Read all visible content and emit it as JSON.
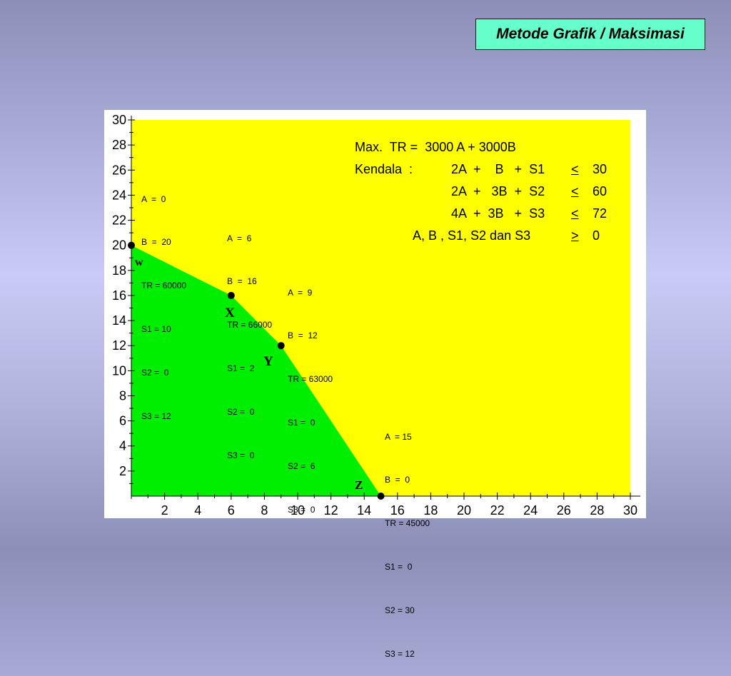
{
  "slide": {
    "title": "Metode Grafik / Maksimasi"
  },
  "model": {
    "objective": "Max.  TR =  3000 A + 3000B",
    "constraints_label": "Kendala  :",
    "constraints": [
      {
        "lhs": "2A  +    B   +  S1",
        "op": "<",
        "rhs": "30"
      },
      {
        "lhs": "2A  +   3B  +  S2",
        "op": "<",
        "rhs": "60"
      },
      {
        "lhs": "4A  +  3B   +  S3",
        "op": "<",
        "rhs": "72"
      }
    ],
    "nonneg": {
      "lhs": "A, B , S1, S2 dan S3",
      "op": ">",
      "rhs": "0"
    }
  },
  "corner_points": [
    {
      "label": "w",
      "lines": [
        "A  =  0",
        "B  =  20",
        "TR = 60000",
        "S1 = 10",
        "S2 =  0",
        "S3 = 12"
      ]
    },
    {
      "label": "X",
      "lines": [
        "A  =  6",
        "B  =  16",
        "TR = 66000",
        "S1 =  2",
        "S2 =  0",
        "S3 =  0"
      ]
    },
    {
      "label": "Y",
      "lines": [
        "A  =  9",
        "B  =  12",
        "TR = 63000",
        "S1 =  0",
        "S2 =  6",
        "S3 =  0"
      ]
    },
    {
      "label": "Z",
      "lines": [
        "A  = 15",
        "B  =  0",
        "TR = 45000",
        "S1 =  0",
        "S2 = 30",
        "S3 = 12"
      ]
    }
  ],
  "chart_data": {
    "type": "area",
    "title": "",
    "xlabel": "",
    "ylabel": "",
    "xlim": [
      0,
      30
    ],
    "ylim": [
      0,
      30
    ],
    "x_ticks": [
      2,
      4,
      6,
      8,
      10,
      12,
      14,
      16,
      18,
      20,
      22,
      24,
      26,
      28,
      30
    ],
    "y_ticks": [
      2,
      4,
      6,
      8,
      10,
      12,
      14,
      16,
      18,
      20,
      22,
      24,
      26,
      28,
      30
    ],
    "feasible_region": [
      [
        0,
        0
      ],
      [
        0,
        20
      ],
      [
        6,
        16
      ],
      [
        9,
        12
      ],
      [
        15,
        0
      ]
    ],
    "points": [
      {
        "name": "w",
        "x": 0,
        "y": 20
      },
      {
        "name": "X",
        "x": 6,
        "y": 16
      },
      {
        "name": "Y",
        "x": 9,
        "y": 12
      },
      {
        "name": "Z",
        "x": 15,
        "y": 0
      }
    ],
    "colors": {
      "background_region": "#ffff00",
      "feasible_region": "#00ee00",
      "points": "#000000"
    }
  }
}
